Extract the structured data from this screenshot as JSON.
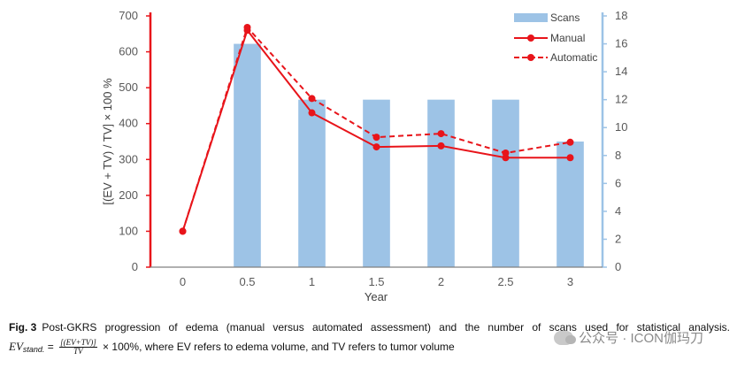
{
  "chart_data": {
    "type": "bar+line",
    "categories": [
      "0",
      "0.5",
      "1",
      "1.5",
      "2",
      "2.5",
      "3"
    ],
    "x_values": [
      0,
      0.5,
      1,
      1.5,
      2,
      2.5,
      3
    ],
    "xlabel": "Year",
    "ylabel_left": "[(EV + TV) / TV] × 100 %",
    "ylim_left": [
      0,
      700
    ],
    "yticks_left": [
      "0",
      "100",
      "200",
      "300",
      "400",
      "500",
      "600",
      "700"
    ],
    "ylim_right": [
      0,
      18
    ],
    "yticks_right": [
      "0",
      "2",
      "4",
      "6",
      "8",
      "10",
      "12",
      "14",
      "16",
      "18"
    ],
    "series": [
      {
        "name": "Scans",
        "type": "bar",
        "axis": "right",
        "color": "#9dc3e6",
        "values": [
          0,
          16,
          12,
          12,
          12,
          12,
          9
        ]
      },
      {
        "name": "Manual",
        "type": "line",
        "axis": "left",
        "color": "#e8141a",
        "dash": false,
        "values": [
          100,
          660,
          430,
          335,
          338,
          305,
          305
        ]
      },
      {
        "name": "Automatic",
        "type": "line",
        "axis": "left",
        "color": "#e8141a",
        "dash": true,
        "values": [
          100,
          668,
          470,
          362,
          372,
          318,
          348
        ]
      }
    ],
    "legend_position": "top-right"
  },
  "caption": {
    "fig_label": "Fig. 3",
    "text": "Post-GKRS progression of edema (manual versus automated assessment) and the number of scans used for statistical analysis.",
    "formula_lhs": "EV",
    "formula_sub": "stand.",
    "formula_eq": "=",
    "frac_num": "[(EV+TV)]",
    "frac_den": "TV",
    "formula_rest": "× 100%, where EV refers to edema volume, and TV refers to tumor volume"
  },
  "watermark": {
    "text": "公众号 · ICON伽玛刀"
  }
}
